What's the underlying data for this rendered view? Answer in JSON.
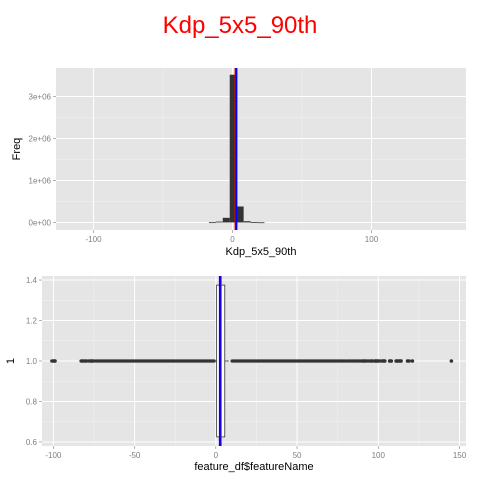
{
  "title": "Kdp_5x5_90th",
  "colors": {
    "title": "#ff0000",
    "panel": "#e5e5e5",
    "grid_major": "#ffffff",
    "grid_minor": "#f2f2f2",
    "bar_fill": "#333333",
    "points": "#333333",
    "mean_line": "#0000ff",
    "median_line": "#ff0000",
    "axis_text": "#7f7f7f"
  },
  "chart_data": [
    {
      "type": "bar",
      "subtype": "histogram",
      "xlabel": "Kdp_5x5_90th",
      "ylabel": "Freq",
      "xlim": [
        -127,
        168
      ],
      "ylim": [
        -180000,
        3680000
      ],
      "x_ticks": [
        -100,
        0,
        100
      ],
      "x_tick_labels": [
        "-100",
        "0",
        "100"
      ],
      "y_ticks": [
        0,
        1000000,
        2000000,
        3000000
      ],
      "y_tick_labels": [
        "0e+00",
        "1e+06",
        "2e+06",
        "3e+06"
      ],
      "bin_width": 5,
      "bins": [
        {
          "x0": -17,
          "x1": -12,
          "count": 5000
        },
        {
          "x0": -12,
          "x1": -7,
          "count": 20000
        },
        {
          "x0": -7,
          "x1": -2,
          "count": 110000
        },
        {
          "x0": -2,
          "x1": 3,
          "count": 3520000
        },
        {
          "x0": 3,
          "x1": 8,
          "count": 380000
        },
        {
          "x0": 8,
          "x1": 13,
          "count": 30000
        },
        {
          "x0": 13,
          "x1": 18,
          "count": 10000
        },
        {
          "x0": 18,
          "x1": 23,
          "count": 3000
        }
      ],
      "vlines": [
        {
          "name": "median",
          "x": 2.2,
          "color": "#ff0000"
        },
        {
          "name": "mean",
          "x": 2.8,
          "color": "#0000ff"
        }
      ],
      "grid": true
    },
    {
      "type": "scatter",
      "subtype": "boxplot",
      "xlabel": "feature_df$featureName",
      "ylabel": "1",
      "xlim": [
        -107,
        154
      ],
      "ylim": [
        0.58,
        1.42
      ],
      "x_ticks": [
        -100,
        -50,
        0,
        50,
        100,
        150
      ],
      "x_tick_labels": [
        "-100",
        "-50",
        "0",
        "50",
        "100",
        "150"
      ],
      "y_ticks": [
        0.6,
        0.8,
        1.0,
        1.2,
        1.4
      ],
      "y_tick_labels": [
        "0.6",
        "0.8",
        "1.0",
        "1.2",
        "1.4"
      ],
      "box": {
        "y": 1.0,
        "x_min": 0.0,
        "q1": 0.5,
        "median": 3.0,
        "q3": 5.5,
        "x_max": 8.0,
        "height": 0.75
      },
      "outlier_segments": [
        {
          "from": -101,
          "to": -99
        },
        {
          "from": -83,
          "to": -80
        },
        {
          "from": -79,
          "to": -75
        },
        {
          "from": -74,
          "to": -1
        },
        {
          "from": 10,
          "to": 80
        },
        {
          "from": 81,
          "to": 91
        },
        {
          "from": 92,
          "to": 97
        },
        {
          "from": 98,
          "to": 100
        },
        {
          "from": 101,
          "to": 104
        },
        {
          "from": 107,
          "to": 108
        },
        {
          "from": 111,
          "to": 112
        },
        {
          "from": 113,
          "to": 114
        }
      ],
      "outlier_points": [
        -100,
        -99,
        -82,
        -80,
        -77,
        -76,
        91,
        92,
        96,
        98,
        99,
        100,
        103,
        104,
        107,
        108,
        111,
        112,
        113,
        114,
        118,
        119,
        121,
        145
      ],
      "vlines": [
        {
          "name": "median",
          "x": 3.0,
          "color": "#ff0000"
        },
        {
          "name": "mean",
          "x": 2.5,
          "color": "#0000ff"
        }
      ],
      "grid": true
    }
  ]
}
